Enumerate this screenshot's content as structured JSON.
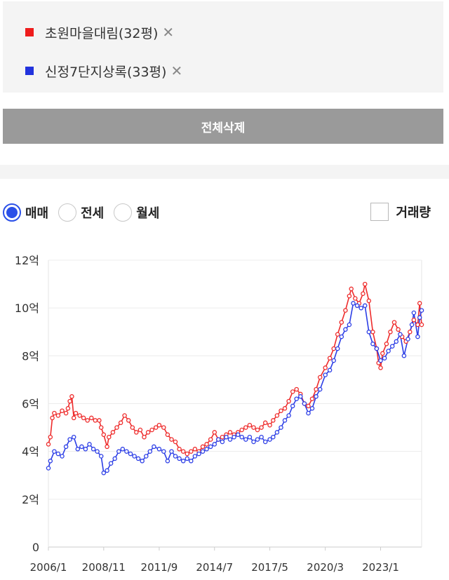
{
  "compare": {
    "items": [
      {
        "label": "초원마을대림(32평)",
        "color": "#ee1c1c",
        "remove": "✕"
      },
      {
        "label": "신정7단지상록(33평)",
        "color": "#2233dd",
        "remove": "✕"
      }
    ]
  },
  "delete_all_label": "전체삭제",
  "tabs": {
    "options": [
      "매매",
      "전세",
      "월세"
    ],
    "selected": "매매",
    "volume_label": "거래량",
    "volume_checked": false
  },
  "chart_data": {
    "type": "line",
    "title": "",
    "ylabel": "",
    "xlabel": "",
    "ylim": [
      0,
      12
    ],
    "grid": true,
    "y_tick_labels": [
      "0",
      "2억",
      "4억",
      "6억",
      "8억",
      "10억",
      "12억"
    ],
    "x_tick_labels": [
      "2006/1",
      "2008/11",
      "2011/9",
      "2014/7",
      "2017/5",
      "2020/3",
      "2023/1"
    ],
    "x_tick_years": [
      2006.0,
      2008.83,
      2011.67,
      2014.5,
      2017.33,
      2020.17,
      2023.0
    ],
    "xlim": [
      2006.0,
      2025.1
    ],
    "series": [
      {
        "name": "초원마을대림(32평)",
        "color": "#ee2b2b",
        "points": [
          [
            2006.0,
            4.3
          ],
          [
            2006.1,
            4.6
          ],
          [
            2006.2,
            5.4
          ],
          [
            2006.3,
            5.6
          ],
          [
            2006.5,
            5.5
          ],
          [
            2006.7,
            5.7
          ],
          [
            2006.9,
            5.6
          ],
          [
            2007.0,
            5.8
          ],
          [
            2007.1,
            6.1
          ],
          [
            2007.2,
            6.3
          ],
          [
            2007.3,
            5.4
          ],
          [
            2007.4,
            5.6
          ],
          [
            2007.6,
            5.5
          ],
          [
            2007.8,
            5.4
          ],
          [
            2008.0,
            5.3
          ],
          [
            2008.2,
            5.4
          ],
          [
            2008.4,
            5.3
          ],
          [
            2008.6,
            5.3
          ],
          [
            2008.7,
            5.0
          ],
          [
            2008.83,
            4.7
          ],
          [
            2009.0,
            4.2
          ],
          [
            2009.1,
            4.6
          ],
          [
            2009.3,
            4.8
          ],
          [
            2009.5,
            5.0
          ],
          [
            2009.7,
            5.2
          ],
          [
            2009.9,
            5.5
          ],
          [
            2010.1,
            5.3
          ],
          [
            2010.3,
            5.0
          ],
          [
            2010.5,
            4.8
          ],
          [
            2010.7,
            4.9
          ],
          [
            2010.9,
            4.6
          ],
          [
            2011.1,
            4.8
          ],
          [
            2011.3,
            4.9
          ],
          [
            2011.5,
            5.0
          ],
          [
            2011.67,
            5.1
          ],
          [
            2011.9,
            5.0
          ],
          [
            2012.1,
            4.7
          ],
          [
            2012.3,
            4.5
          ],
          [
            2012.5,
            4.4
          ],
          [
            2012.7,
            4.1
          ],
          [
            2012.9,
            4.0
          ],
          [
            2013.1,
            3.9
          ],
          [
            2013.3,
            4.0
          ],
          [
            2013.5,
            4.1
          ],
          [
            2013.7,
            4.0
          ],
          [
            2013.9,
            4.2
          ],
          [
            2014.1,
            4.3
          ],
          [
            2014.3,
            4.5
          ],
          [
            2014.5,
            4.8
          ],
          [
            2014.7,
            4.5
          ],
          [
            2014.9,
            4.6
          ],
          [
            2015.1,
            4.7
          ],
          [
            2015.3,
            4.8
          ],
          [
            2015.5,
            4.7
          ],
          [
            2015.7,
            4.8
          ],
          [
            2015.9,
            4.9
          ],
          [
            2016.1,
            5.0
          ],
          [
            2016.3,
            5.1
          ],
          [
            2016.5,
            5.0
          ],
          [
            2016.7,
            4.9
          ],
          [
            2016.9,
            5.0
          ],
          [
            2017.1,
            5.2
          ],
          [
            2017.33,
            5.1
          ],
          [
            2017.5,
            5.3
          ],
          [
            2017.7,
            5.5
          ],
          [
            2017.9,
            5.7
          ],
          [
            2018.1,
            5.8
          ],
          [
            2018.3,
            6.1
          ],
          [
            2018.5,
            6.5
          ],
          [
            2018.7,
            6.6
          ],
          [
            2018.9,
            6.4
          ],
          [
            2019.1,
            6.0
          ],
          [
            2019.3,
            5.9
          ],
          [
            2019.5,
            6.2
          ],
          [
            2019.7,
            6.6
          ],
          [
            2019.9,
            7.1
          ],
          [
            2020.17,
            7.5
          ],
          [
            2020.4,
            7.9
          ],
          [
            2020.6,
            8.3
          ],
          [
            2020.8,
            8.9
          ],
          [
            2021.0,
            9.4
          ],
          [
            2021.2,
            9.9
          ],
          [
            2021.4,
            10.5
          ],
          [
            2021.5,
            10.8
          ],
          [
            2021.7,
            10.4
          ],
          [
            2021.9,
            10.2
          ],
          [
            2022.1,
            10.6
          ],
          [
            2022.2,
            11.0
          ],
          [
            2022.4,
            10.3
          ],
          [
            2022.6,
            9.0
          ],
          [
            2022.8,
            8.3
          ],
          [
            2022.9,
            7.7
          ],
          [
            2023.0,
            7.5
          ],
          [
            2023.1,
            8.1
          ],
          [
            2023.3,
            8.5
          ],
          [
            2023.5,
            9.0
          ],
          [
            2023.7,
            9.4
          ],
          [
            2023.9,
            9.1
          ],
          [
            2024.1,
            8.8
          ],
          [
            2024.3,
            8.6
          ],
          [
            2024.5,
            9.0
          ],
          [
            2024.7,
            9.5
          ],
          [
            2024.9,
            9.3
          ],
          [
            2025.0,
            10.2
          ],
          [
            2025.1,
            9.3
          ]
        ]
      },
      {
        "name": "신정7단지상록(33평)",
        "color": "#2c3ee6",
        "points": [
          [
            2006.0,
            3.3
          ],
          [
            2006.1,
            3.6
          ],
          [
            2006.3,
            4.0
          ],
          [
            2006.5,
            3.9
          ],
          [
            2006.7,
            3.8
          ],
          [
            2006.9,
            4.2
          ],
          [
            2007.1,
            4.5
          ],
          [
            2007.3,
            4.6
          ],
          [
            2007.5,
            4.1
          ],
          [
            2007.7,
            4.2
          ],
          [
            2007.9,
            4.1
          ],
          [
            2008.1,
            4.3
          ],
          [
            2008.3,
            4.1
          ],
          [
            2008.5,
            4.0
          ],
          [
            2008.7,
            3.8
          ],
          [
            2008.83,
            3.1
          ],
          [
            2009.0,
            3.2
          ],
          [
            2009.2,
            3.5
          ],
          [
            2009.4,
            3.7
          ],
          [
            2009.6,
            4.0
          ],
          [
            2009.8,
            4.1
          ],
          [
            2010.0,
            4.0
          ],
          [
            2010.2,
            3.9
          ],
          [
            2010.4,
            3.8
          ],
          [
            2010.6,
            3.7
          ],
          [
            2010.8,
            3.6
          ],
          [
            2011.0,
            3.8
          ],
          [
            2011.2,
            4.0
          ],
          [
            2011.4,
            4.2
          ],
          [
            2011.67,
            4.1
          ],
          [
            2011.9,
            4.0
          ],
          [
            2012.1,
            3.6
          ],
          [
            2012.3,
            4.0
          ],
          [
            2012.5,
            3.8
          ],
          [
            2012.7,
            3.7
          ],
          [
            2012.9,
            3.6
          ],
          [
            2013.1,
            3.7
          ],
          [
            2013.3,
            3.6
          ],
          [
            2013.5,
            3.8
          ],
          [
            2013.7,
            3.9
          ],
          [
            2013.9,
            4.0
          ],
          [
            2014.1,
            4.1
          ],
          [
            2014.3,
            4.2
          ],
          [
            2014.5,
            4.3
          ],
          [
            2014.7,
            4.5
          ],
          [
            2014.9,
            4.4
          ],
          [
            2015.1,
            4.6
          ],
          [
            2015.3,
            4.5
          ],
          [
            2015.5,
            4.6
          ],
          [
            2015.7,
            4.7
          ],
          [
            2015.9,
            4.6
          ],
          [
            2016.1,
            4.5
          ],
          [
            2016.3,
            4.6
          ],
          [
            2016.5,
            4.4
          ],
          [
            2016.7,
            4.5
          ],
          [
            2016.9,
            4.6
          ],
          [
            2017.1,
            4.4
          ],
          [
            2017.33,
            4.5
          ],
          [
            2017.5,
            4.6
          ],
          [
            2017.7,
            4.8
          ],
          [
            2017.9,
            5.0
          ],
          [
            2018.1,
            5.3
          ],
          [
            2018.3,
            5.5
          ],
          [
            2018.5,
            5.9
          ],
          [
            2018.7,
            6.2
          ],
          [
            2018.9,
            6.3
          ],
          [
            2019.1,
            6.0
          ],
          [
            2019.3,
            5.6
          ],
          [
            2019.5,
            5.8
          ],
          [
            2019.7,
            6.3
          ],
          [
            2019.9,
            6.6
          ],
          [
            2020.17,
            7.2
          ],
          [
            2020.4,
            7.4
          ],
          [
            2020.6,
            7.8
          ],
          [
            2020.8,
            8.3
          ],
          [
            2021.0,
            8.8
          ],
          [
            2021.2,
            9.1
          ],
          [
            2021.4,
            9.3
          ],
          [
            2021.6,
            10.2
          ],
          [
            2021.8,
            10.1
          ],
          [
            2022.0,
            10.0
          ],
          [
            2022.2,
            10.1
          ],
          [
            2022.4,
            9.0
          ],
          [
            2022.6,
            8.5
          ],
          [
            2022.8,
            8.3
          ],
          [
            2023.0,
            7.8
          ],
          [
            2023.2,
            7.9
          ],
          [
            2023.4,
            8.2
          ],
          [
            2023.6,
            8.4
          ],
          [
            2023.8,
            8.6
          ],
          [
            2024.0,
            8.9
          ],
          [
            2024.2,
            8.0
          ],
          [
            2024.4,
            8.7
          ],
          [
            2024.6,
            9.3
          ],
          [
            2024.7,
            9.8
          ],
          [
            2024.9,
            8.8
          ],
          [
            2025.0,
            9.6
          ],
          [
            2025.1,
            9.9
          ]
        ]
      }
    ]
  }
}
